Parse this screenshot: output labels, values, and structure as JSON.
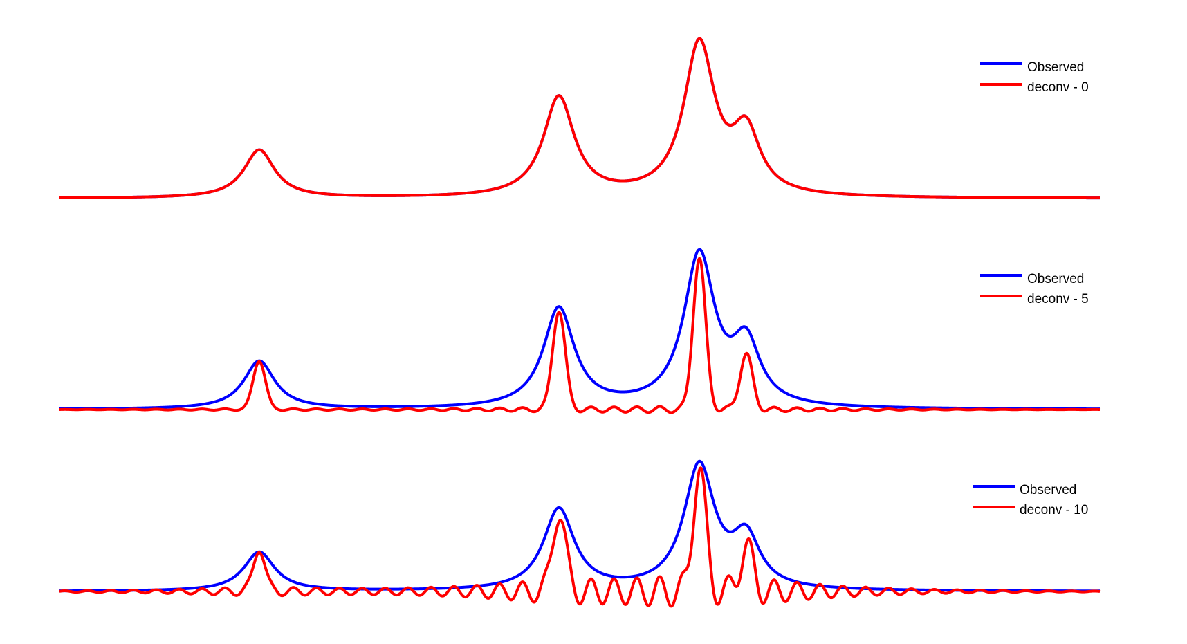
{
  "chart_data": [
    {
      "type": "line",
      "x": {
        "min": 0,
        "max": 1,
        "samples": 1500
      },
      "ylim": [
        0,
        1
      ],
      "grid": false,
      "legend_placement": "top-right",
      "colors": {
        "observed": "#0000ff",
        "deconv": "#ff0000"
      },
      "series": [
        {
          "name": "Observed",
          "color": "#0000ff",
          "shape": "peaks",
          "peaks": [
            {
              "x": 0.192,
              "height": 0.315
            },
            {
              "x": 0.48,
              "height": 0.655
            },
            {
              "x": 0.615,
              "height": 0.995
            },
            {
              "x": 0.66,
              "height": 0.395
            }
          ]
        },
        {
          "name": "deconv - 0",
          "color": "#ff0000",
          "shape": "peaks",
          "peaks": [
            {
              "x": 0.192,
              "height": 0.315
            },
            {
              "x": 0.48,
              "height": 0.655
            },
            {
              "x": 0.615,
              "height": 0.995
            },
            {
              "x": 0.66,
              "height": 0.395
            }
          ]
        }
      ]
    },
    {
      "type": "line",
      "x": {
        "min": 0,
        "max": 1,
        "samples": 1500
      },
      "ylim": [
        0,
        1
      ],
      "grid": false,
      "legend_placement": "top-right",
      "colors": {
        "observed": "#0000ff",
        "deconv": "#ff0000"
      },
      "series": [
        {
          "name": "Observed",
          "color": "#0000ff",
          "shape": "peaks",
          "peaks": [
            {
              "x": 0.192,
              "height": 0.315
            },
            {
              "x": 0.48,
              "height": 0.655
            },
            {
              "x": 0.615,
              "height": 0.995
            },
            {
              "x": 0.66,
              "height": 0.395
            }
          ]
        },
        {
          "name": "deconv - 5",
          "color": "#ff0000",
          "shape": "sharpened",
          "ringing": 0.02,
          "peaks": [
            {
              "x": 0.192,
              "height": 0.315
            },
            {
              "x": 0.48,
              "height": 0.655
            },
            {
              "x": 0.615,
              "height": 0.995
            },
            {
              "x": 0.66,
              "height": 0.365
            }
          ]
        }
      ]
    },
    {
      "type": "line",
      "x": {
        "min": 0,
        "max": 1,
        "samples": 1500
      },
      "ylim": [
        -0.2,
        1
      ],
      "grid": false,
      "legend_placement": "top-right",
      "colors": {
        "observed": "#0000ff",
        "deconv": "#ff0000"
      },
      "series": [
        {
          "name": "Observed",
          "color": "#0000ff",
          "shape": "peaks",
          "peaks": [
            {
              "x": 0.192,
              "height": 0.315
            },
            {
              "x": 0.48,
              "height": 0.655
            },
            {
              "x": 0.615,
              "height": 0.995
            },
            {
              "x": 0.66,
              "height": 0.395
            }
          ]
        },
        {
          "name": "deconv - 10",
          "color": "#ff0000",
          "shape": "sharpened",
          "ringing": 0.12,
          "peaks": [
            {
              "x": 0.192,
              "height": 0.315
            },
            {
              "x": 0.48,
              "height": 0.655
            },
            {
              "x": 0.615,
              "height": 0.995
            },
            {
              "x": 0.66,
              "height": 0.365
            }
          ]
        }
      ]
    }
  ]
}
